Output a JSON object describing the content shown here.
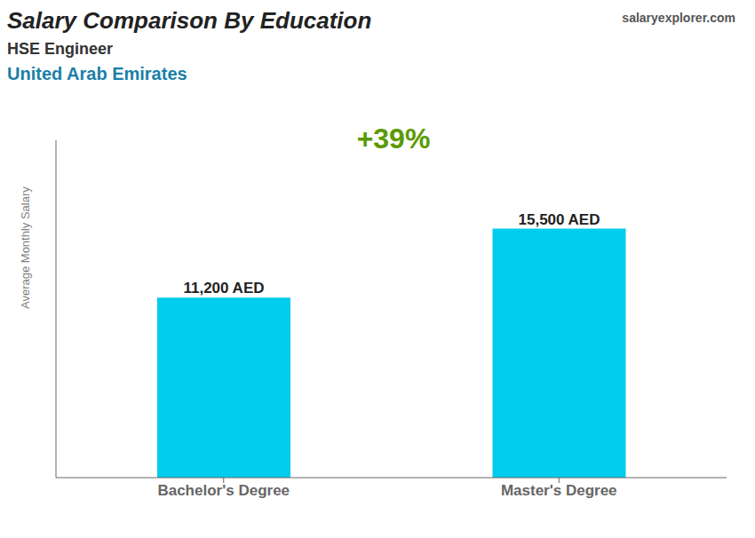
{
  "chart_data": {
    "type": "bar",
    "title": "Salary Comparison By Education",
    "subtitle": "HSE Engineer",
    "annotations": [
      "United Arab Emirates",
      "salaryexplorer.com",
      "+39%"
    ],
    "y_label": "Average Monthly Salary",
    "categories": [
      "Bachelor's Degree",
      "Master's Degree"
    ],
    "values": [
      11200,
      15500
    ],
    "value_labels": [
      "11,200 AED",
      "15,500 AED"
    ],
    "data_labels": true,
    "color": "#00ccee",
    "ylim": [
      0,
      21000
    ],
    "tick_labels": "x",
    "grid": false
  }
}
